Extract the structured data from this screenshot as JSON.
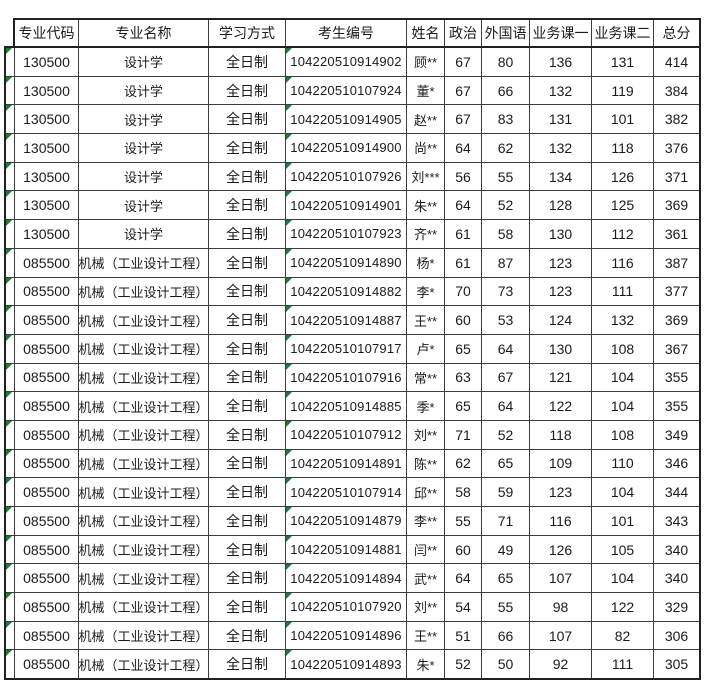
{
  "colors": {
    "background": "#ffffff",
    "grid_line": "#3d3d3d",
    "outer_border": "#212121",
    "text": "#1b1b1b",
    "error_indicator_green": "#1f7a33"
  },
  "icons": {
    "cell_error_indicator": "green-corner-triangle"
  },
  "table": {
    "headers": [
      "专业代码",
      "专业名称",
      "学习方式",
      "考生编号",
      "姓名",
      "政治",
      "外国语",
      "业务课一",
      "业务课二",
      "总分"
    ],
    "rows": [
      {
        "code": "130500",
        "major": "设计学",
        "mode": "全日制",
        "id": "104220510914902",
        "name": "顾**",
        "politics": "67",
        "foreign": "80",
        "course1": "136",
        "course2": "131",
        "total": "414"
      },
      {
        "code": "130500",
        "major": "设计学",
        "mode": "全日制",
        "id": "104220510107924",
        "name": "董*",
        "politics": "67",
        "foreign": "66",
        "course1": "132",
        "course2": "119",
        "total": "384"
      },
      {
        "code": "130500",
        "major": "设计学",
        "mode": "全日制",
        "id": "104220510914905",
        "name": "赵**",
        "politics": "67",
        "foreign": "83",
        "course1": "131",
        "course2": "101",
        "total": "382"
      },
      {
        "code": "130500",
        "major": "设计学",
        "mode": "全日制",
        "id": "104220510914900",
        "name": "尚**",
        "politics": "64",
        "foreign": "62",
        "course1": "132",
        "course2": "118",
        "total": "376"
      },
      {
        "code": "130500",
        "major": "设计学",
        "mode": "全日制",
        "id": "104220510107926",
        "name": "刘***",
        "politics": "56",
        "foreign": "55",
        "course1": "134",
        "course2": "126",
        "total": "371"
      },
      {
        "code": "130500",
        "major": "设计学",
        "mode": "全日制",
        "id": "104220510914901",
        "name": "朱**",
        "politics": "64",
        "foreign": "52",
        "course1": "128",
        "course2": "125",
        "total": "369"
      },
      {
        "code": "130500",
        "major": "设计学",
        "mode": "全日制",
        "id": "104220510107923",
        "name": "齐**",
        "politics": "61",
        "foreign": "58",
        "course1": "130",
        "course2": "112",
        "total": "361"
      },
      {
        "code": "085500",
        "major": "机械（工业设计工程）",
        "mode": "全日制",
        "id": "104220510914890",
        "name": "杨*",
        "politics": "61",
        "foreign": "87",
        "course1": "123",
        "course2": "116",
        "total": "387"
      },
      {
        "code": "085500",
        "major": "机械（工业设计工程）",
        "mode": "全日制",
        "id": "104220510914882",
        "name": "李*",
        "politics": "70",
        "foreign": "73",
        "course1": "123",
        "course2": "111",
        "total": "377"
      },
      {
        "code": "085500",
        "major": "机械（工业设计工程）",
        "mode": "全日制",
        "id": "104220510914887",
        "name": "王**",
        "politics": "60",
        "foreign": "53",
        "course1": "124",
        "course2": "132",
        "total": "369"
      },
      {
        "code": "085500",
        "major": "机械（工业设计工程）",
        "mode": "全日制",
        "id": "104220510107917",
        "name": "卢*",
        "politics": "65",
        "foreign": "64",
        "course1": "130",
        "course2": "108",
        "total": "367"
      },
      {
        "code": "085500",
        "major": "机械（工业设计工程）",
        "mode": "全日制",
        "id": "104220510107916",
        "name": "常**",
        "politics": "63",
        "foreign": "67",
        "course1": "121",
        "course2": "104",
        "total": "355"
      },
      {
        "code": "085500",
        "major": "机械（工业设计工程）",
        "mode": "全日制",
        "id": "104220510914885",
        "name": "季*",
        "politics": "65",
        "foreign": "64",
        "course1": "122",
        "course2": "104",
        "total": "355"
      },
      {
        "code": "085500",
        "major": "机械（工业设计工程）",
        "mode": "全日制",
        "id": "104220510107912",
        "name": "刘**",
        "politics": "71",
        "foreign": "52",
        "course1": "118",
        "course2": "108",
        "total": "349"
      },
      {
        "code": "085500",
        "major": "机械（工业设计工程）",
        "mode": "全日制",
        "id": "104220510914891",
        "name": "陈**",
        "politics": "62",
        "foreign": "65",
        "course1": "109",
        "course2": "110",
        "total": "346"
      },
      {
        "code": "085500",
        "major": "机械（工业设计工程）",
        "mode": "全日制",
        "id": "104220510107914",
        "name": "邱**",
        "politics": "58",
        "foreign": "59",
        "course1": "123",
        "course2": "104",
        "total": "344"
      },
      {
        "code": "085500",
        "major": "机械（工业设计工程）",
        "mode": "全日制",
        "id": "104220510914879",
        "name": "李**",
        "politics": "55",
        "foreign": "71",
        "course1": "116",
        "course2": "101",
        "total": "343"
      },
      {
        "code": "085500",
        "major": "机械（工业设计工程）",
        "mode": "全日制",
        "id": "104220510914881",
        "name": "闫**",
        "politics": "60",
        "foreign": "49",
        "course1": "126",
        "course2": "105",
        "total": "340"
      },
      {
        "code": "085500",
        "major": "机械（工业设计工程）",
        "mode": "全日制",
        "id": "104220510914894",
        "name": "武**",
        "politics": "64",
        "foreign": "65",
        "course1": "107",
        "course2": "104",
        "total": "340"
      },
      {
        "code": "085500",
        "major": "机械（工业设计工程）",
        "mode": "全日制",
        "id": "104220510107920",
        "name": "刘**",
        "politics": "54",
        "foreign": "55",
        "course1": "98",
        "course2": "122",
        "total": "329"
      },
      {
        "code": "085500",
        "major": "机械（工业设计工程）",
        "mode": "全日制",
        "id": "104220510914896",
        "name": "王**",
        "politics": "51",
        "foreign": "66",
        "course1": "107",
        "course2": "82",
        "total": "306"
      },
      {
        "code": "085500",
        "major": "机械（工业设计工程）",
        "mode": "全日制",
        "id": "104220510914893",
        "name": "朱*",
        "politics": "52",
        "foreign": "50",
        "course1": "92",
        "course2": "111",
        "total": "305"
      }
    ]
  }
}
